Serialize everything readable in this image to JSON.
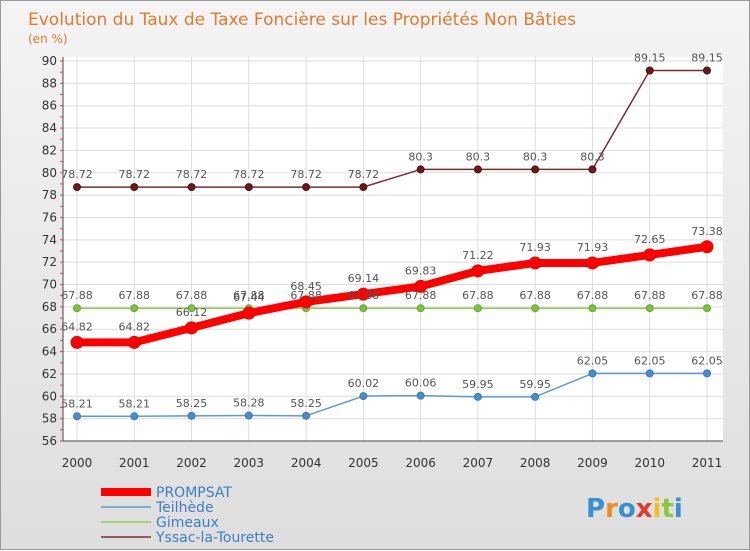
{
  "chart_data": {
    "type": "line",
    "title": "Evolution du Taux de Taxe Foncière sur les Propriétés Non Bâties",
    "ylabel": "(en %)",
    "xlabel": "",
    "categories": [
      "2000",
      "2001",
      "2002",
      "2003",
      "2004",
      "2005",
      "2006",
      "2007",
      "2008",
      "2009",
      "2010",
      "2011"
    ],
    "ylim": [
      56,
      90
    ],
    "yticks": [
      56,
      58,
      60,
      62,
      64,
      66,
      68,
      70,
      72,
      74,
      76,
      78,
      80,
      82,
      84,
      86,
      88,
      90
    ],
    "series": [
      {
        "name": "PROMPSAT",
        "color": "#ff0000",
        "values": [
          64.82,
          64.82,
          66.12,
          67.44,
          68.45,
          69.14,
          69.83,
          71.22,
          71.93,
          71.93,
          72.65,
          73.38
        ],
        "labels": [
          "64.82",
          "64.82",
          "66.12",
          "67.44",
          "68.45",
          "69.14",
          "69.83",
          "71.22",
          "71.93",
          "71.93",
          "72.65",
          "73.38"
        ]
      },
      {
        "name": "Teilhède",
        "color": "#5b9bd5",
        "values": [
          58.21,
          58.21,
          58.25,
          58.28,
          58.25,
          60.02,
          60.06,
          59.95,
          59.95,
          62.05,
          62.05,
          62.05
        ],
        "labels": [
          "58.21",
          "58.21",
          "58.25",
          "58.28",
          "58.25",
          "60.02",
          "60.06",
          "59.95",
          "59.95",
          "62.05",
          "62.05",
          "62.05"
        ]
      },
      {
        "name": "Gimeaux",
        "color": "#8fd14f",
        "values": [
          67.88,
          67.88,
          67.88,
          67.88,
          67.88,
          67.88,
          67.88,
          67.88,
          67.88,
          67.88,
          67.88,
          67.88
        ],
        "labels": [
          "67.88",
          "67.88",
          "67.88",
          "67.88",
          "67.88",
          "67.88",
          "67.88",
          "67.88",
          "67.88",
          "67.88",
          "67.88",
          "67.88"
        ]
      },
      {
        "name": "Yssac-la-Tourette",
        "color": "#7b2d2d",
        "values": [
          78.72,
          78.72,
          78.72,
          78.72,
          78.72,
          78.72,
          80.3,
          80.3,
          80.3,
          80.3,
          89.15,
          89.15
        ],
        "labels": [
          "78.72",
          "78.72",
          "78.72",
          "78.72",
          "78.72",
          "78.72",
          "80.3",
          "80.3",
          "80.3",
          "80.3",
          "89.15",
          "89.15"
        ]
      }
    ]
  },
  "brand": {
    "letters": [
      "P",
      "r",
      "o",
      "x",
      "i",
      "t",
      "i"
    ],
    "colors": [
      "#3a8fd0",
      "#f08a24",
      "#3a8fd0",
      "#e03a2e",
      "#f0c020",
      "#8cc63e",
      "#3a8fd0"
    ]
  }
}
